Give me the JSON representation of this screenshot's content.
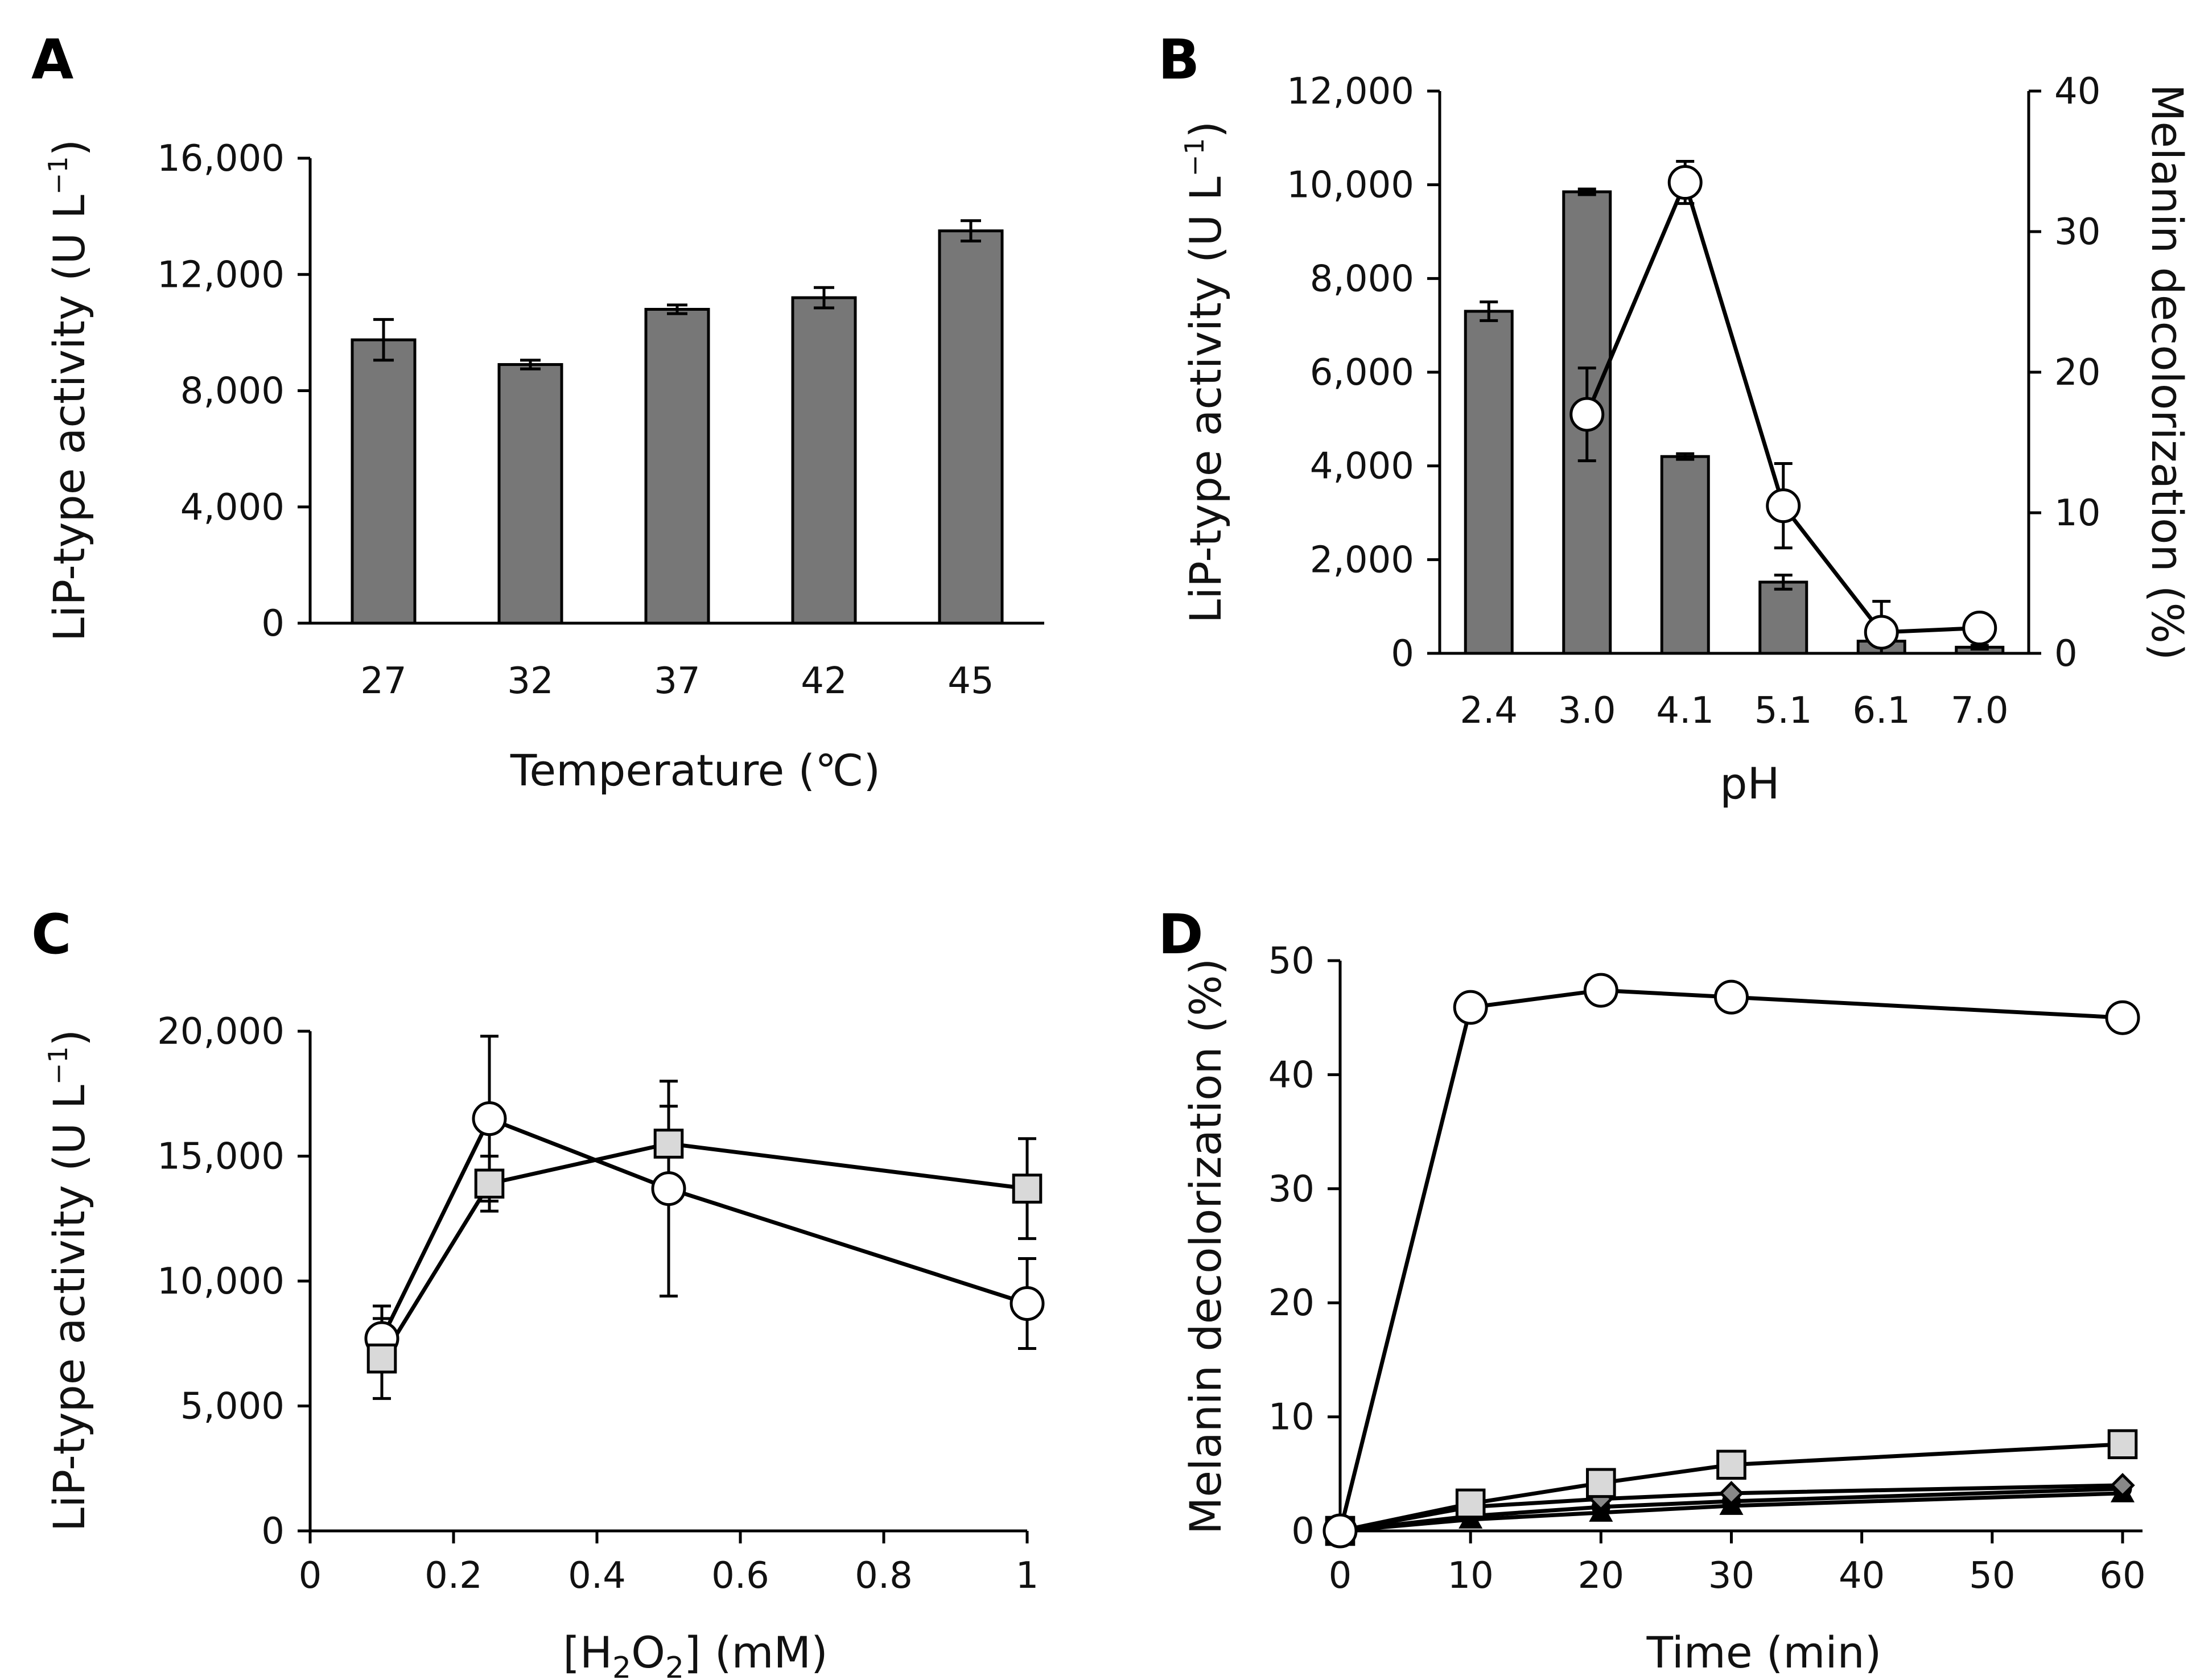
{
  "chart_data": [
    {
      "panel": "A",
      "type": "bar",
      "xlabel": "Temperature (℃)",
      "ylabel": "LiP-type activity (U L⁻¹)",
      "categories": [
        "27",
        "32",
        "37",
        "42",
        "45"
      ],
      "values": [
        9750,
        8900,
        10800,
        11200,
        13500
      ],
      "errors": [
        700,
        150,
        150,
        350,
        350
      ],
      "ylim": [
        0,
        16000
      ],
      "yticks": [
        "0",
        "4,000",
        "8,000",
        "12,000",
        "16,000"
      ],
      "bar_color": "#777777"
    },
    {
      "panel": "B",
      "type": "bar",
      "xlabel": "pH",
      "ylabel": "LiP-type activity (U L⁻¹)",
      "y2label": "Melanin decolorization (%)",
      "categories": [
        "2.4",
        "3.0",
        "4.1",
        "5.1",
        "6.1",
        "7.0"
      ],
      "values": [
        7300,
        9850,
        4200,
        1520,
        260,
        130
      ],
      "errors": [
        200,
        60,
        60,
        150,
        40,
        40
      ],
      "ylim": [
        0,
        12000
      ],
      "yticks": [
        "0",
        "2,000",
        "4,000",
        "6,000",
        "8,000",
        "10,000",
        "12,000"
      ],
      "y2lim": [
        0,
        40
      ],
      "y2ticks": [
        "0",
        "10",
        "20",
        "30",
        "40"
      ],
      "line_series": {
        "marker": "circle",
        "categories": [
          "3.0",
          "4.1",
          "5.1",
          "6.1",
          "7.0"
        ],
        "values": [
          17,
          33.5,
          10.5,
          1.5,
          1.8
        ],
        "errors": [
          3.3,
          1.5,
          3.0,
          2.2,
          0.5
        ]
      },
      "bar_color": "#777777"
    },
    {
      "panel": "C",
      "type": "line",
      "xlabel": "[H2O2] (mM)",
      "ylabel": "LiP-type activity (U L⁻¹)",
      "xlim": [
        0,
        1
      ],
      "xticks": [
        "0",
        "0.2",
        "0.4",
        "0.6",
        "0.8",
        "1"
      ],
      "ylim": [
        0,
        20000
      ],
      "yticks": [
        "0",
        "5,000",
        "10,000",
        "15,000",
        "20,000"
      ],
      "series": [
        {
          "marker": "circle",
          "x": [
            0.1,
            0.25,
            0.5,
            1
          ],
          "values": [
            7700,
            16500,
            13700,
            9100
          ],
          "errors": [
            1300,
            3300,
            4300,
            1800
          ]
        },
        {
          "marker": "square",
          "x": [
            0.1,
            0.25,
            0.5,
            1
          ],
          "values": [
            6900,
            13900,
            15500,
            13700
          ],
          "errors": [
            1600,
            1100,
            1500,
            2000
          ]
        }
      ]
    },
    {
      "panel": "D",
      "type": "line",
      "xlabel": "Time (min)",
      "ylabel": "Melanin decolorization (%)",
      "xlim": [
        0,
        60
      ],
      "xticks": [
        "0",
        "10",
        "20",
        "30",
        "40",
        "50",
        "60"
      ],
      "ylim": [
        0,
        50
      ],
      "yticks": [
        "0",
        "10",
        "20",
        "30",
        "40",
        "50"
      ],
      "series": [
        {
          "marker": "circle",
          "x": [
            0,
            10,
            20,
            30,
            60
          ],
          "values": [
            0,
            45.9,
            47.4,
            46.8,
            45
          ]
        },
        {
          "marker": "square",
          "x": [
            0,
            10,
            20,
            30,
            60
          ],
          "values": [
            0,
            2.4,
            4.2,
            5.8,
            7.6
          ]
        },
        {
          "marker": "diamond",
          "x": [
            0,
            10,
            20,
            30,
            60
          ],
          "values": [
            0,
            2.1,
            2.8,
            3.3,
            4.0
          ]
        },
        {
          "marker": "circle-small",
          "x": [
            0,
            10,
            20,
            30,
            60
          ],
          "values": [
            0,
            1.3,
            2.1,
            2.6,
            3.7
          ]
        },
        {
          "marker": "triangle",
          "x": [
            0,
            10,
            20,
            30,
            60
          ],
          "values": [
            0,
            1.0,
            1.6,
            2.2,
            3.3
          ]
        }
      ]
    }
  ]
}
